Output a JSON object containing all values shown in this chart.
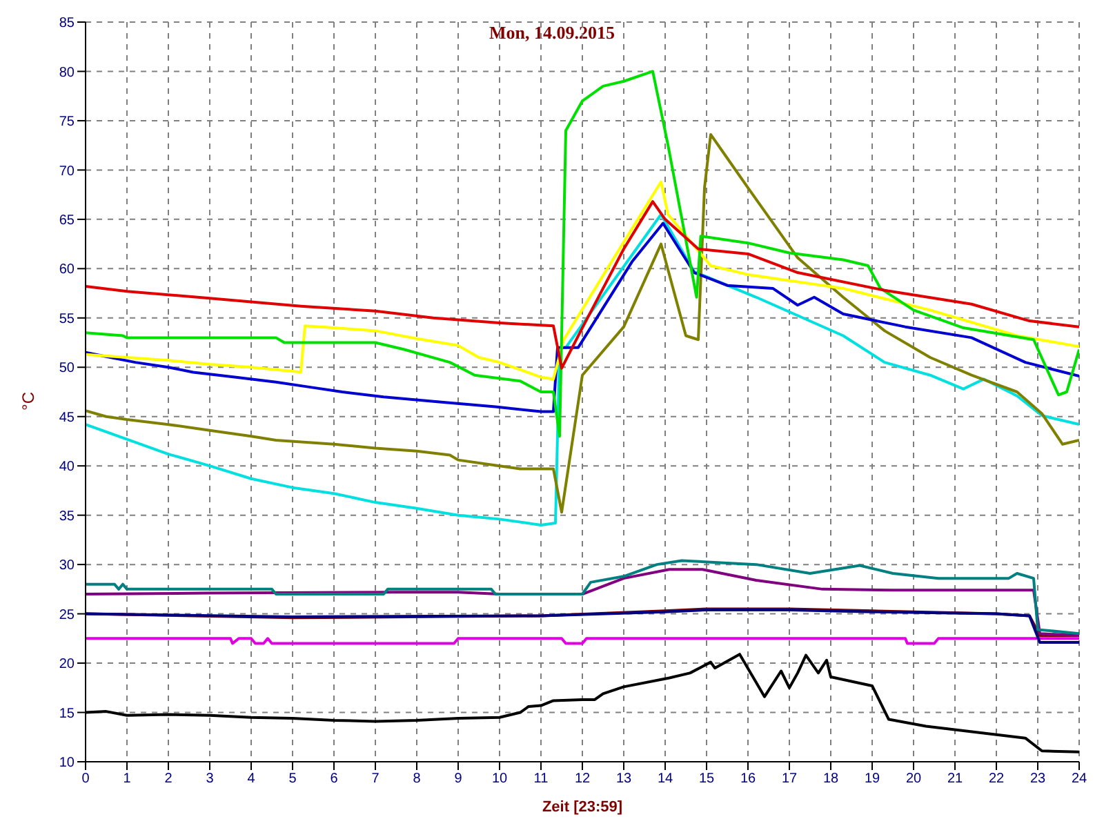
{
  "chart_data": {
    "type": "line",
    "title": "Mon, 14.09.2015",
    "xlabel": "Zeit [23:59]",
    "ylabel": "°C",
    "xlim": [
      0,
      24
    ],
    "xticks": [
      0,
      1,
      2,
      3,
      4,
      5,
      6,
      7,
      8,
      9,
      10,
      11,
      12,
      13,
      14,
      15,
      16,
      17,
      18,
      19,
      20,
      21,
      22,
      23,
      24
    ],
    "ylim": [
      10,
      85
    ],
    "yticks": [
      10,
      15,
      20,
      25,
      30,
      35,
      40,
      45,
      50,
      55,
      60,
      65,
      70,
      75,
      80,
      85
    ],
    "grid": true,
    "marker": "none",
    "line_style": "solid",
    "series": [
      {
        "color": "#000000",
        "x": [
          0,
          0.5,
          1,
          2,
          3,
          4,
          5,
          6,
          7,
          8,
          9,
          10,
          10.5,
          10.7,
          11,
          11.3,
          12,
          12.3,
          12.5,
          13,
          14.1,
          14.6,
          15.1,
          15.2,
          15.8,
          16.4,
          16.8,
          17,
          17.2,
          17.4,
          17.7,
          17.9,
          18,
          19,
          19.4,
          20.3,
          22.7,
          23.1,
          24
        ],
        "values": [
          15,
          15.1,
          14.7,
          14.8,
          14.7,
          14.5,
          14.4,
          14.2,
          14.1,
          14.2,
          14.4,
          14.5,
          15,
          15.6,
          15.7,
          16.2,
          16.3,
          16.3,
          16.9,
          17.6,
          18.5,
          19,
          20.1,
          19.5,
          20.9,
          16.6,
          19.2,
          17.5,
          19,
          20.8,
          19,
          20.3,
          18.6,
          17.7,
          14.3,
          13.6,
          12.4,
          11.1,
          11
        ]
      },
      {
        "color": "#e000e0",
        "x": [
          0,
          3.5,
          3.55,
          3.7,
          4,
          4.1,
          4.3,
          4.4,
          4.5,
          8.9,
          9,
          11.5,
          11.6,
          12,
          12.1,
          19.8,
          19.85,
          20.5,
          20.6,
          24
        ],
        "values": [
          22.5,
          22.5,
          22,
          22.5,
          22.5,
          22,
          22,
          22.5,
          22,
          22,
          22.5,
          22.5,
          22,
          22,
          22.5,
          22.5,
          22,
          22,
          22.5,
          22.5
        ]
      },
      {
        "color": "#800000",
        "x": [
          0,
          5,
          11,
          14,
          15,
          17,
          19,
          22,
          22.8,
          23.05,
          24
        ],
        "values": [
          25,
          24.6,
          24.8,
          25.3,
          25.5,
          25.5,
          25.3,
          25,
          24.8,
          22.8,
          22.8
        ]
      },
      {
        "color": "#000080",
        "x": [
          0,
          5,
          11,
          14,
          15,
          17,
          19,
          22,
          22.8,
          23.05,
          24
        ],
        "values": [
          25,
          24.7,
          24.8,
          25.2,
          25.4,
          25.4,
          25.2,
          25,
          24.8,
          22.1,
          22.1
        ]
      },
      {
        "color": "#800080",
        "x": [
          0,
          3,
          7.5,
          9,
          10,
          12,
          13,
          14.1,
          14.9,
          16.2,
          17.8,
          19.5,
          22.9,
          23.05,
          24
        ],
        "values": [
          27,
          27.1,
          27.2,
          27.2,
          27,
          27,
          28.6,
          29.5,
          29.5,
          28.4,
          27.5,
          27.4,
          27.4,
          23,
          22.8
        ]
      },
      {
        "color": "#008080",
        "x": [
          0,
          0.7,
          0.8,
          0.9,
          1,
          4.5,
          4.6,
          7.2,
          7.3,
          9.8,
          9.9,
          12,
          12.2,
          13,
          13.8,
          14.4,
          16.2,
          17.5,
          18.7,
          19.5,
          20.6,
          22.3,
          22.5,
          22.9,
          23,
          24
        ],
        "values": [
          28,
          28,
          27.5,
          28,
          27.5,
          27.5,
          27,
          27,
          27.5,
          27.5,
          27,
          27,
          28.2,
          28.8,
          30,
          30.4,
          30,
          29.1,
          29.9,
          29.1,
          28.6,
          28.6,
          29.1,
          28.6,
          23.4,
          23
        ]
      },
      {
        "color": "#00e0e0",
        "x": [
          0,
          1,
          2,
          3,
          4,
          5,
          6,
          7,
          8,
          9,
          10,
          11,
          11.35,
          11.45,
          11.6,
          13.9,
          14.7,
          16.2,
          18.3,
          19.3,
          20.4,
          21.2,
          21.7,
          22.5,
          23.1,
          24
        ],
        "values": [
          44.2,
          42.7,
          41.2,
          40,
          38.7,
          37.8,
          37.2,
          36.3,
          35.7,
          35,
          34.6,
          34,
          34.2,
          52,
          52,
          65.5,
          59.7,
          57.1,
          53.2,
          50.5,
          49.2,
          47.8,
          48.8,
          47.1,
          45.1,
          44.2
        ]
      },
      {
        "color": "#808000",
        "x": [
          0,
          0.5,
          1,
          2,
          3,
          4,
          4.6,
          6,
          7,
          8,
          8.8,
          9,
          10,
          10.5,
          11.3,
          11.5,
          12,
          13,
          13.9,
          14.5,
          14.8,
          14.95,
          15.1,
          15.5,
          16,
          17.2,
          18.3,
          19.3,
          20.4,
          21.4,
          22.5,
          23.1,
          23.6,
          24
        ],
        "values": [
          45.6,
          45,
          44.7,
          44.2,
          43.6,
          43,
          42.6,
          42.2,
          41.8,
          41.5,
          41.1,
          40.6,
          40,
          39.7,
          39.7,
          35.3,
          49.2,
          54.1,
          62.5,
          53.2,
          52.8,
          68.2,
          73.6,
          71.2,
          68.2,
          61.1,
          57.1,
          53.7,
          51,
          49.2,
          47.5,
          45.3,
          42.2,
          42.6
        ]
      },
      {
        "color": "#0000d0",
        "x": [
          0,
          0.6,
          1.2,
          2,
          2.6,
          3.6,
          4.6,
          5.4,
          6.2,
          7.2,
          8.5,
          9.9,
          11,
          11.3,
          11.4,
          11.9,
          13.2,
          13.95,
          14.7,
          15.5,
          16.6,
          17.2,
          17.6,
          18.3,
          19.8,
          21.4,
          22.7,
          24
        ],
        "values": [
          51.5,
          51,
          50.5,
          50,
          49.5,
          49,
          48.5,
          48,
          47.5,
          47,
          46.5,
          46,
          45.5,
          45.5,
          52,
          52,
          60.7,
          64.6,
          59.6,
          58.3,
          58,
          56.3,
          57.1,
          55.4,
          54.1,
          53,
          50.5,
          49.1
        ]
      },
      {
        "color": "#ffff00",
        "x": [
          0,
          1,
          2,
          3,
          4,
          5,
          5.2,
          5.3,
          6,
          7,
          8,
          9,
          9.5,
          10,
          11,
          11.3,
          11.55,
          12.5,
          13.9,
          14.07,
          15.1,
          16,
          18.3,
          20.4,
          22.5,
          24
        ],
        "values": [
          51.3,
          51,
          50.7,
          50.3,
          50,
          49.6,
          49.5,
          54.2,
          54,
          53.7,
          52.9,
          52.2,
          51,
          50.5,
          49,
          48.8,
          52.8,
          59.3,
          68.8,
          65.5,
          60.3,
          59.4,
          58,
          55.8,
          53.2,
          52.1
        ]
      },
      {
        "color": "#00e000",
        "x": [
          0,
          0.9,
          1,
          4.6,
          4.8,
          7,
          7.7,
          8.8,
          9.4,
          10.5,
          11,
          11.3,
          11.45,
          11.6,
          12,
          12.5,
          13,
          13.7,
          14.07,
          14.76,
          14.86,
          16,
          17,
          18.3,
          18.9,
          19.2,
          20,
          21.2,
          22.9,
          23.5,
          23.7,
          24
        ],
        "values": [
          53.5,
          53.2,
          53,
          53,
          52.5,
          52.5,
          51.8,
          50.5,
          49.2,
          48.6,
          47.5,
          47.5,
          43,
          74,
          77,
          78.5,
          79,
          80,
          72.5,
          57.1,
          63.3,
          62.6,
          61.6,
          60.9,
          60.3,
          58,
          55.8,
          54,
          52.8,
          47.2,
          47.5,
          51.8
        ]
      },
      {
        "color": "#e00000",
        "x": [
          0,
          1,
          3,
          5.2,
          7,
          8.4,
          10,
          11.3,
          11.5,
          12,
          12.5,
          13,
          13.7,
          14,
          14.8,
          16,
          17.2,
          19.3,
          21.4,
          22.8,
          24
        ],
        "values": [
          58.2,
          57.7,
          57,
          56.2,
          55.7,
          55,
          54.5,
          54.2,
          49.9,
          54,
          58,
          62,
          66.8,
          65,
          62,
          61.5,
          59.6,
          57.8,
          56.4,
          54.7,
          54.1
        ]
      }
    ]
  }
}
